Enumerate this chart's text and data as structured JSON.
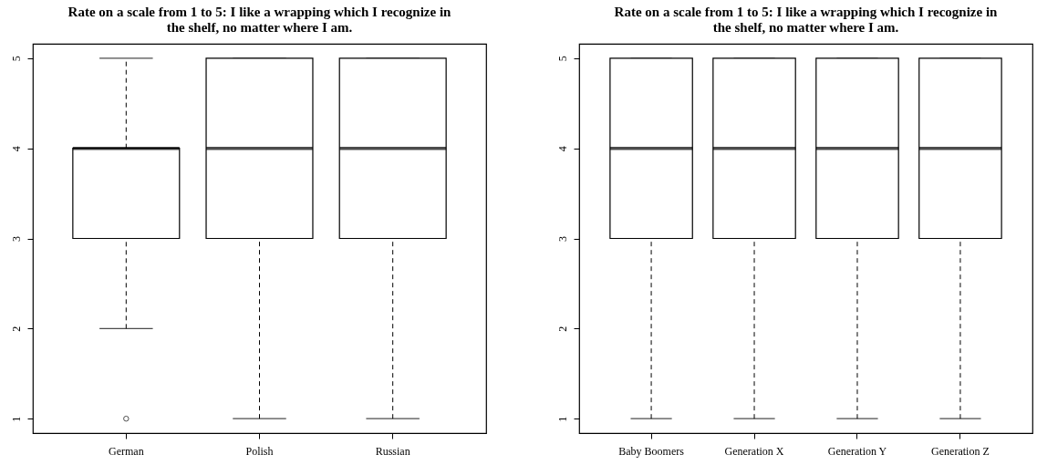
{
  "chart_data": [
    {
      "type": "box",
      "title": "Rate on a scale from 1 to 5: I like a wrapping which I recognize in the shelf, no matter where I am.",
      "categories": [
        "German",
        "Polish",
        "Russian"
      ],
      "boxes": [
        {
          "low": 2,
          "q1": 3,
          "median": 4,
          "q3": 4,
          "high": 5,
          "outliers": [
            1
          ]
        },
        {
          "low": 1,
          "q1": 3,
          "median": 4,
          "q3": 5,
          "high": 5
        },
        {
          "low": 1,
          "q1": 3,
          "median": 4,
          "q3": 5,
          "high": 5
        }
      ],
      "ylim": [
        0.84,
        5.16
      ],
      "yticks": [
        1,
        2,
        3,
        4,
        5
      ]
    },
    {
      "type": "box",
      "title": "Rate on a scale from 1 to 5: I like a wrapping which I recognize in the shelf, no matter where I am.",
      "categories": [
        "Baby Boomers",
        "Generation X",
        "Generation Y",
        "Generation Z"
      ],
      "boxes": [
        {
          "low": 1,
          "q1": 3,
          "median": 4,
          "q3": 5,
          "high": 5
        },
        {
          "low": 1,
          "q1": 3,
          "median": 4,
          "q3": 5,
          "high": 5
        },
        {
          "low": 1,
          "q1": 3,
          "median": 4,
          "q3": 5,
          "high": 5
        },
        {
          "low": 1,
          "q1": 3,
          "median": 4,
          "q3": 5,
          "high": 5
        }
      ],
      "ylim": [
        0.84,
        5.16
      ],
      "yticks": [
        1,
        2,
        3,
        4,
        5
      ]
    }
  ]
}
